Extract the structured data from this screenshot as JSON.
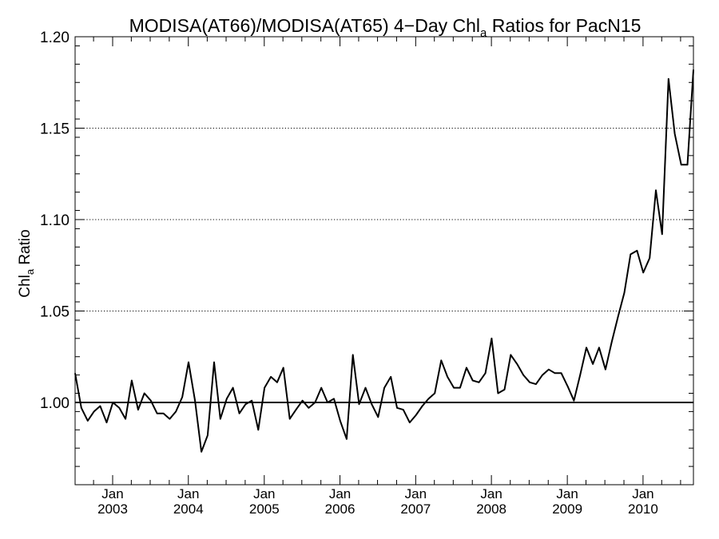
{
  "chart_data": {
    "type": "line",
    "title": "MODISA(AT66)/MODISA(AT65) 4−Day Chl",
    "title_subscript": "a",
    "title_suffix": " Ratios for PacN15",
    "ylabel": "Chl",
    "ylabel_subscript": "a",
    "ylabel_suffix": " Ratio",
    "xlabel": "",
    "ylim": [
      0.955,
      1.2
    ],
    "xlim": [
      "2002-07-04",
      "2010-09-01"
    ],
    "y_ticks": [
      "1.00",
      "1.05",
      "1.10",
      "1.15",
      "1.20"
    ],
    "y_tick_values": [
      1.0,
      1.05,
      1.1,
      1.15,
      1.2
    ],
    "x_tick_labels": [
      {
        "month": "Jan",
        "year": "2003",
        "date": "2003-01-01"
      },
      {
        "month": "Jan",
        "year": "2004",
        "date": "2004-01-01"
      },
      {
        "month": "Jan",
        "year": "2005",
        "date": "2005-01-01"
      },
      {
        "month": "Jan",
        "year": "2006",
        "date": "2006-01-01"
      },
      {
        "month": "Jan",
        "year": "2007",
        "date": "2007-01-01"
      },
      {
        "month": "Jan",
        "year": "2008",
        "date": "2008-01-01"
      },
      {
        "month": "Jan",
        "year": "2009",
        "date": "2009-01-01"
      },
      {
        "month": "Jan",
        "year": "2010",
        "date": "2010-01-01"
      }
    ],
    "grid": "horizontal dotted at y ticks",
    "reference_line": 1.0,
    "line_color": "#000000",
    "series": [
      {
        "x": [
          "2002-07-04",
          "2002-08-03",
          "2002-09-03",
          "2002-10-03",
          "2002-11-02",
          "2002-12-03",
          "2003-01-02",
          "2003-02-02",
          "2003-03-04",
          "2003-04-03",
          "2003-05-04",
          "2003-06-03",
          "2003-07-04",
          "2003-08-03",
          "2003-09-03",
          "2003-10-03",
          "2003-11-02",
          "2003-12-03",
          "2004-01-02",
          "2004-02-02",
          "2004-03-04",
          "2004-04-03",
          "2004-05-04",
          "2004-06-03",
          "2004-07-04",
          "2004-08-03",
          "2004-09-03",
          "2004-10-03",
          "2004-11-02",
          "2004-12-03",
          "2005-01-02",
          "2005-02-02",
          "2005-03-04",
          "2005-04-03",
          "2005-05-04",
          "2005-06-03",
          "2005-07-04",
          "2005-08-03",
          "2005-09-03",
          "2005-10-03",
          "2005-11-02",
          "2005-12-03",
          "2006-01-02",
          "2006-02-02",
          "2006-03-04",
          "2006-04-03",
          "2006-05-04",
          "2006-06-03",
          "2006-07-04",
          "2006-08-03",
          "2006-09-03",
          "2006-10-03",
          "2006-11-02",
          "2006-12-03",
          "2007-01-02",
          "2007-02-02",
          "2007-03-04",
          "2007-04-03",
          "2007-05-04",
          "2007-06-03",
          "2007-07-04",
          "2007-08-03",
          "2007-09-03",
          "2007-10-03",
          "2007-11-02",
          "2007-12-03",
          "2008-01-02",
          "2008-02-02",
          "2008-03-04",
          "2008-04-03",
          "2008-05-04",
          "2008-06-03",
          "2008-07-04",
          "2008-08-03",
          "2008-09-03",
          "2008-10-03",
          "2008-11-02",
          "2008-12-03",
          "2009-01-02",
          "2009-02-02",
          "2009-03-04",
          "2009-04-03",
          "2009-05-04",
          "2009-06-03",
          "2009-07-04",
          "2009-08-03",
          "2009-09-03",
          "2009-10-03",
          "2009-11-02",
          "2009-12-03",
          "2010-01-02",
          "2010-02-02",
          "2010-03-04",
          "2010-04-03",
          "2010-05-04",
          "2010-06-03",
          "2010-07-04",
          "2010-08-03",
          "2010-09-01"
        ],
        "y": [
          1.016,
          0.997,
          0.99,
          0.995,
          0.998,
          0.989,
          1.0,
          0.997,
          0.991,
          1.012,
          0.996,
          1.005,
          1.001,
          0.994,
          0.994,
          0.991,
          0.995,
          1.003,
          1.022,
          1.001,
          0.973,
          0.982,
          1.022,
          0.991,
          1.002,
          1.008,
          0.994,
          0.999,
          1.001,
          0.985,
          1.008,
          1.014,
          1.011,
          1.019,
          0.991,
          0.996,
          1.001,
          0.997,
          1.0,
          1.008,
          1.0,
          1.002,
          0.99,
          0.98,
          1.026,
          0.999,
          1.008,
          0.999,
          0.992,
          1.008,
          1.014,
          0.997,
          0.996,
          0.989,
          0.993,
          0.998,
          1.002,
          1.005,
          1.023,
          1.014,
          1.008,
          1.008,
          1.019,
          1.012,
          1.011,
          1.016,
          1.035,
          1.005,
          1.007,
          1.026,
          1.021,
          1.015,
          1.011,
          1.01,
          1.015,
          1.018,
          1.016,
          1.016,
          1.009,
          1.001,
          1.015,
          1.03,
          1.021,
          1.03,
          1.018,
          1.033,
          1.047,
          1.06,
          1.081,
          1.083,
          1.071,
          1.079,
          1.116,
          1.092,
          1.177,
          1.147,
          1.13,
          1.13,
          1.182
        ]
      }
    ]
  }
}
